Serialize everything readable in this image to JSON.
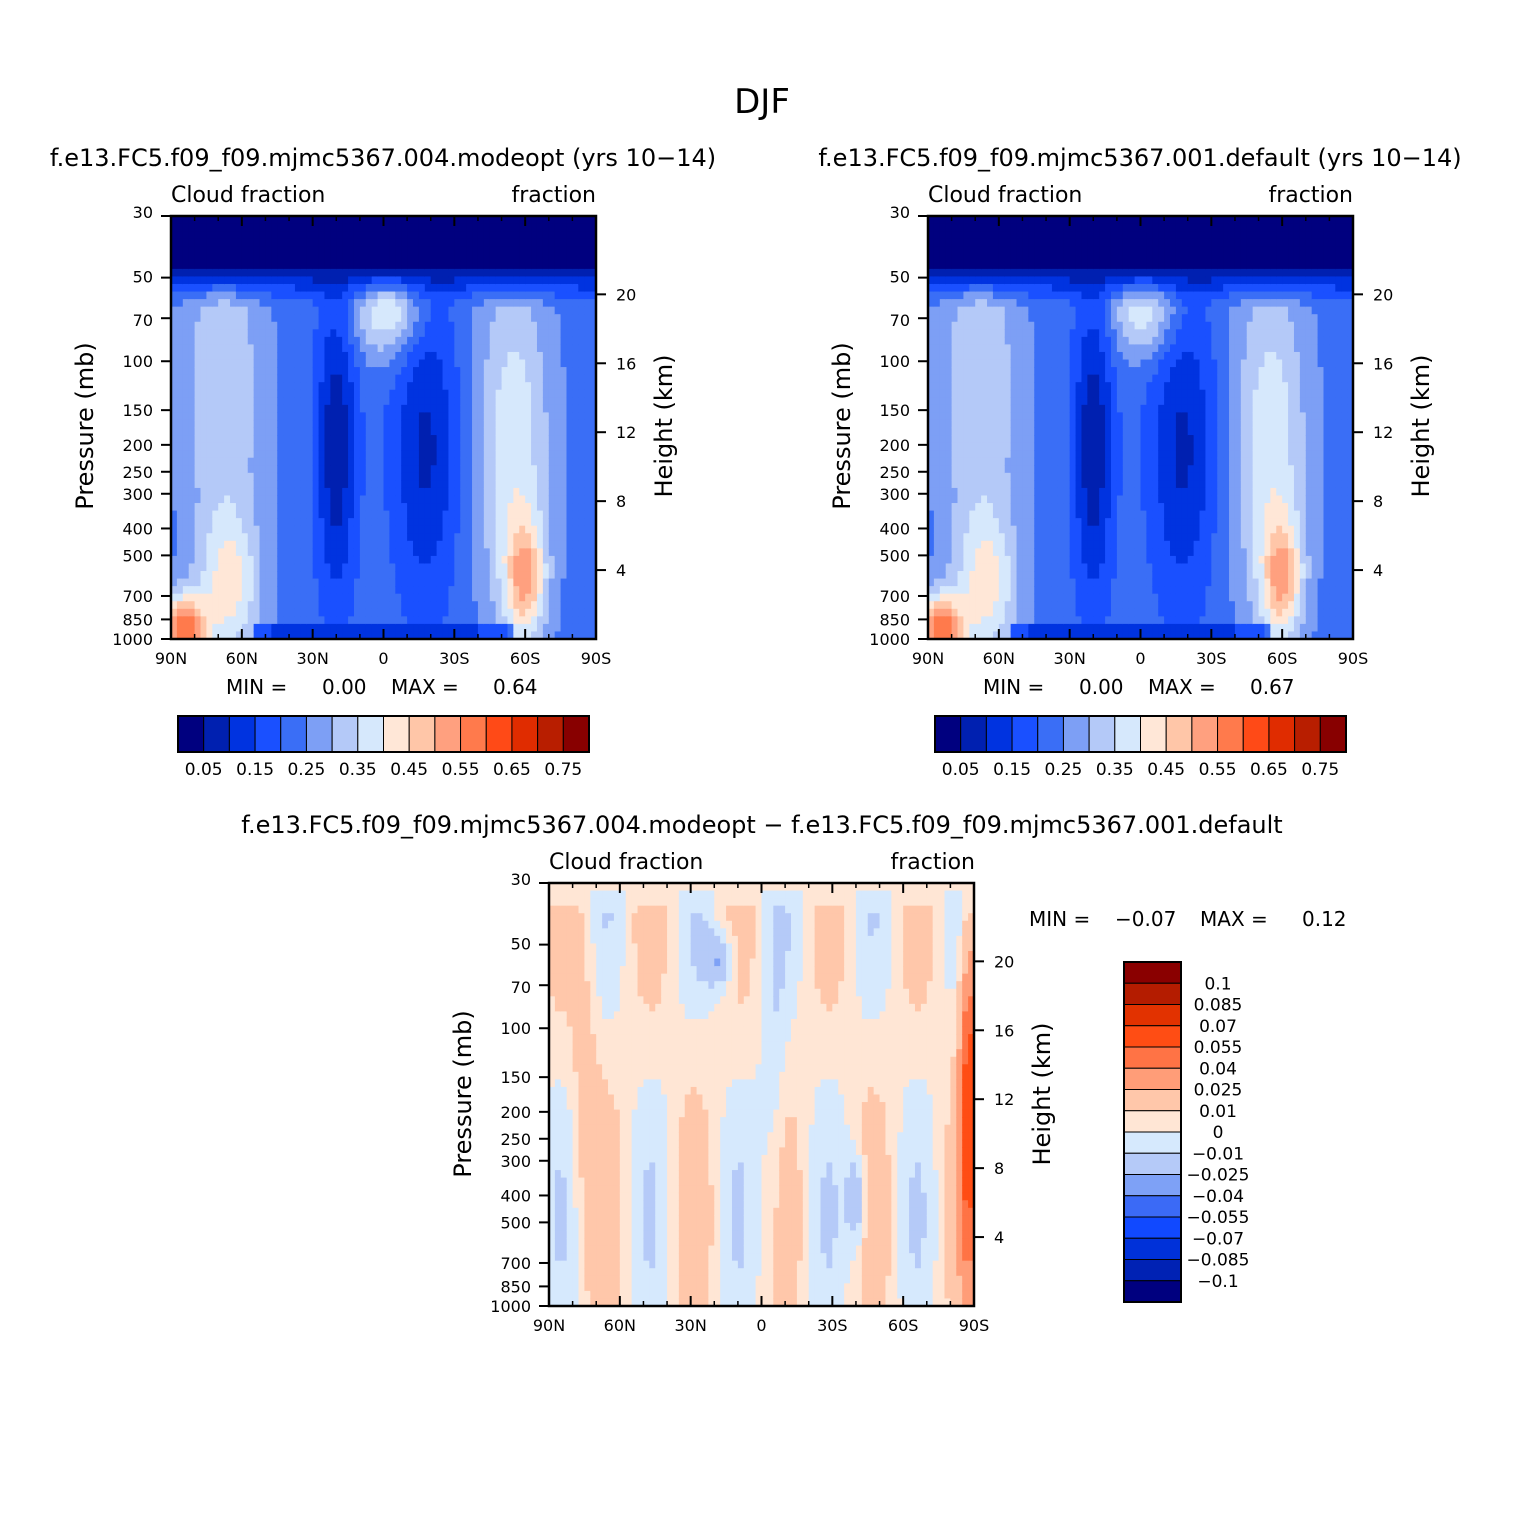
{
  "figure_title": "DJF",
  "colors": {
    "levels_abs": [
      "#00007f",
      "#0020b0",
      "#0033e0",
      "#1a50ff",
      "#3a6ef6",
      "#7d9ff5",
      "#b4c9f8",
      "#d6e8fc",
      "#ffe7d7",
      "#ffc6a8",
      "#ffa07f",
      "#ff7a4c",
      "#ff4a17",
      "#e02c00",
      "#b81e00",
      "#880000"
    ],
    "levels_diff": [
      "#00007f",
      "#0022b4",
      "#0031d9",
      "#1149ff",
      "#3b6af6",
      "#7ea1f6",
      "#b5caf8",
      "#d6e9fd",
      "#ffe6d5",
      "#ffc7aa",
      "#ff9d78",
      "#ff7345",
      "#ff4d14",
      "#e23200",
      "#b41c00",
      "#8a0000"
    ]
  },
  "chart_data": [
    {
      "type": "heatmap",
      "title": "f.e13.FC5.f09_f09.mjmc5367.004.modeopt (yrs 10−14)",
      "left_string": "Cloud  fraction",
      "right_string": "fraction",
      "xlabel": "",
      "ylabel": "Pressure  (mb)",
      "ylabel_right": "Height  (km)",
      "x_ticks": [
        "90N",
        "60N",
        "30N",
        "0",
        "30S",
        "60S",
        "90S"
      ],
      "y_ticks": [
        "30",
        "50",
        "70",
        "100",
        "150",
        "200",
        "250",
        "300",
        "400",
        "500",
        "700",
        "850",
        "1000"
      ],
      "y_ticks_right": [
        "20",
        "16",
        "12",
        "8",
        "4"
      ],
      "min_label": "MIN =",
      "min_value": "0.00",
      "max_label": "MAX =",
      "max_value": "0.64",
      "colorbar_labels": [
        "0.05",
        "0.15",
        "0.25",
        "0.35",
        "0.45",
        "0.55",
        "0.65",
        "0.75"
      ],
      "levels": [
        0.05,
        0.1,
        0.15,
        0.2,
        0.25,
        0.3,
        0.35,
        0.4,
        0.45,
        0.5,
        0.55,
        0.6,
        0.65,
        0.7,
        0.75
      ]
    },
    {
      "type": "heatmap",
      "title": "f.e13.FC5.f09_f09.mjmc5367.001.default (yrs 10−14)",
      "left_string": "Cloud  fraction",
      "right_string": "fraction",
      "xlabel": "",
      "ylabel": "Pressure  (mb)",
      "ylabel_right": "Height  (km)",
      "x_ticks": [
        "90N",
        "60N",
        "30N",
        "0",
        "30S",
        "60S",
        "90S"
      ],
      "y_ticks": [
        "30",
        "50",
        "70",
        "100",
        "150",
        "200",
        "250",
        "300",
        "400",
        "500",
        "700",
        "850",
        "1000"
      ],
      "y_ticks_right": [
        "20",
        "16",
        "12",
        "8",
        "4"
      ],
      "min_label": "MIN =",
      "min_value": "0.00",
      "max_label": "MAX =",
      "max_value": "0.67",
      "colorbar_labels": [
        "0.05",
        "0.15",
        "0.25",
        "0.35",
        "0.45",
        "0.55",
        "0.65",
        "0.75"
      ],
      "levels": [
        0.05,
        0.1,
        0.15,
        0.2,
        0.25,
        0.3,
        0.35,
        0.4,
        0.45,
        0.5,
        0.55,
        0.6,
        0.65,
        0.7,
        0.75
      ]
    },
    {
      "type": "heatmap",
      "title": "f.e13.FC5.f09_f09.mjmc5367.004.modeopt − f.e13.FC5.f09_f09.mjmc5367.001.default",
      "left_string": "Cloud  fraction",
      "right_string": "fraction",
      "xlabel": "",
      "ylabel": "Pressure  (mb)",
      "ylabel_right": "Height  (km)",
      "x_ticks": [
        "90N",
        "60N",
        "30N",
        "0",
        "30S",
        "60S",
        "90S"
      ],
      "y_ticks": [
        "30",
        "50",
        "70",
        "100",
        "150",
        "200",
        "250",
        "300",
        "400",
        "500",
        "700",
        "850",
        "1000"
      ],
      "y_ticks_right": [
        "20",
        "16",
        "12",
        "8",
        "4"
      ],
      "min_label": "MIN =",
      "min_value": "−0.07",
      "max_label": "MAX =",
      "max_value": "0.12",
      "colorbar_labels": [
        "0.1",
        "0.085",
        "0.07",
        "0.055",
        "0.04",
        "0.025",
        "0.01",
        "0",
        "−0.01",
        "−0.025",
        "−0.04",
        "−0.055",
        "−0.07",
        "−0.085",
        "−0.1"
      ],
      "levels": [
        -0.1,
        -0.085,
        -0.07,
        -0.055,
        -0.04,
        -0.025,
        -0.01,
        0,
        0.01,
        0.025,
        0.04,
        0.055,
        0.07,
        0.085,
        0.1
      ]
    }
  ]
}
